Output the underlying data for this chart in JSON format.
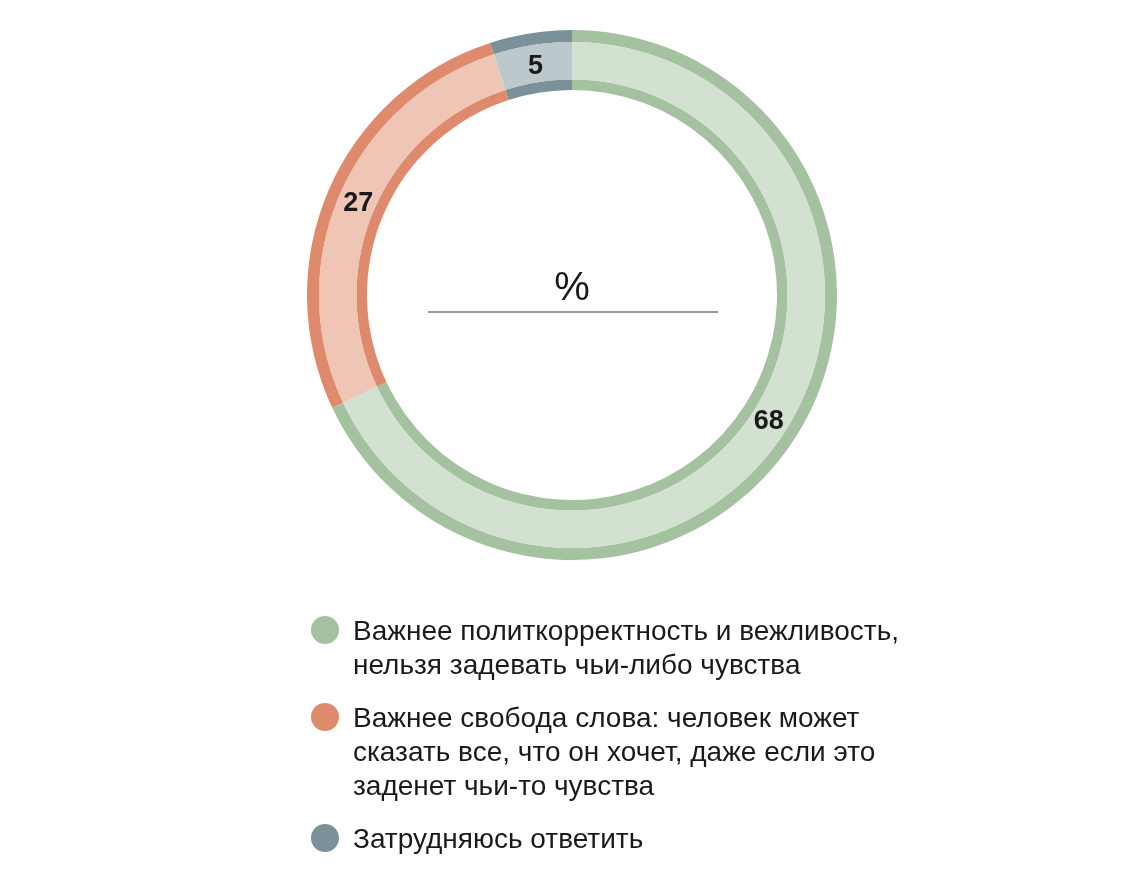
{
  "chart_data": {
    "type": "donut",
    "title": "%",
    "categories": [
      "Важнее политкорректность и вежливость, нельзя задевать чьи-либо чувства",
      "Важнее свобода слова: человек может сказать все, что он хочет, даже если это заденет чьи-то чувства",
      "Затрудняюсь ответить"
    ],
    "values": [
      68,
      27,
      5
    ],
    "colors": [
      "#a5c2a0",
      "#df8a6c",
      "#7b9199"
    ],
    "data_labels": true,
    "legend": "bottom"
  }
}
